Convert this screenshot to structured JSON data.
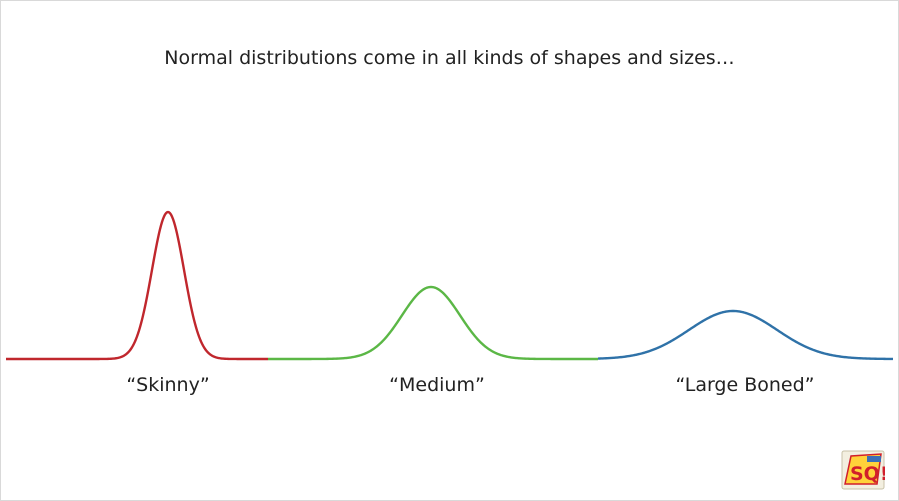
{
  "title": "Normal distributions come in all kinds of shapes and sizes…",
  "curves": [
    {
      "label": "“Skinny”",
      "color": "#c0272d"
    },
    {
      "label": "“Medium”",
      "color": "#5bb746"
    },
    {
      "label": "“Large Boned”",
      "color": "#2f72a8"
    }
  ],
  "logo": {
    "icon": "statquest-logo-icon"
  }
}
